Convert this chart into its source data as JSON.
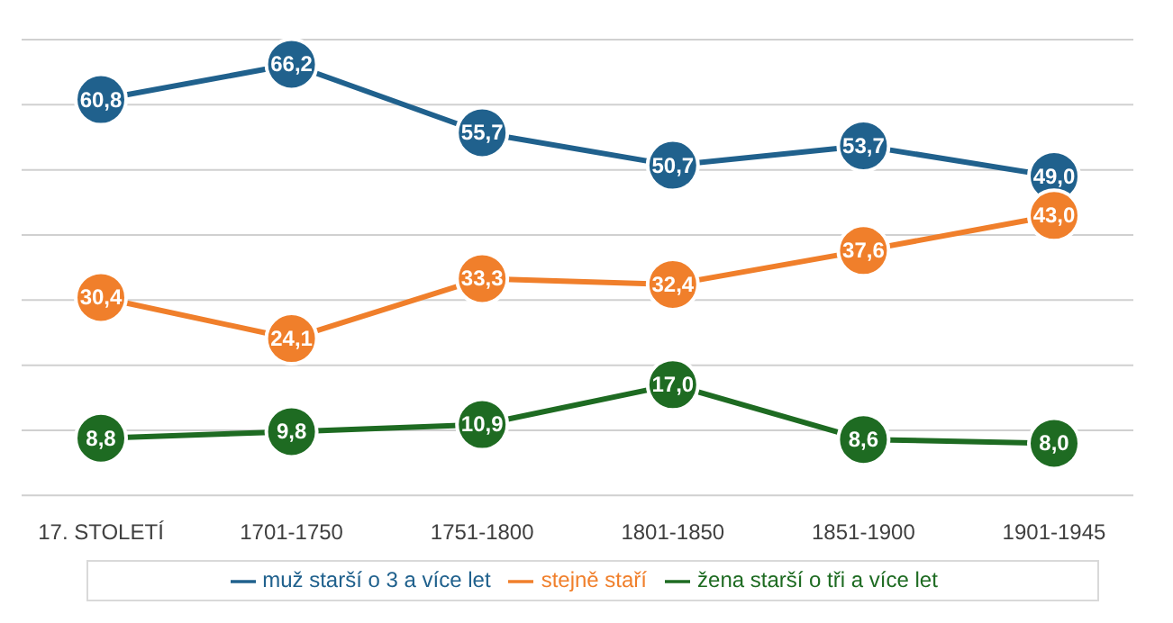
{
  "chart_data": {
    "type": "line",
    "categories": [
      "17. STOLETÍ",
      "1701-1750",
      "1751-1800",
      "1801-1850",
      "1851-1900",
      "1901-1945"
    ],
    "series": [
      {
        "name": "muž starší o 3 a více let",
        "color": "#20618d",
        "values": [
          60.8,
          66.2,
          55.7,
          50.7,
          53.7,
          49.0
        ],
        "value_labels": [
          "60,8",
          "66,2",
          "55,7",
          "50,7",
          "53,7",
          "49,0"
        ]
      },
      {
        "name": "stejně staří",
        "color": "#f07f2b",
        "values": [
          30.4,
          24.1,
          33.3,
          32.4,
          37.6,
          43.0
        ],
        "value_labels": [
          "30,4",
          "24,1",
          "33,3",
          "32,4",
          "37,6",
          "43,0"
        ]
      },
      {
        "name": "žena starší o tři a více let",
        "color": "#1e6b22",
        "values": [
          8.8,
          9.8,
          10.9,
          17.0,
          8.6,
          8.0
        ],
        "value_labels": [
          "8,8",
          "9,8",
          "10,9",
          "17,0",
          "8,6",
          "8,0"
        ]
      }
    ],
    "tick_labels": "x",
    "grid": "y",
    "legend": "bottom",
    "marker": "circle",
    "line_style": "solid"
  }
}
